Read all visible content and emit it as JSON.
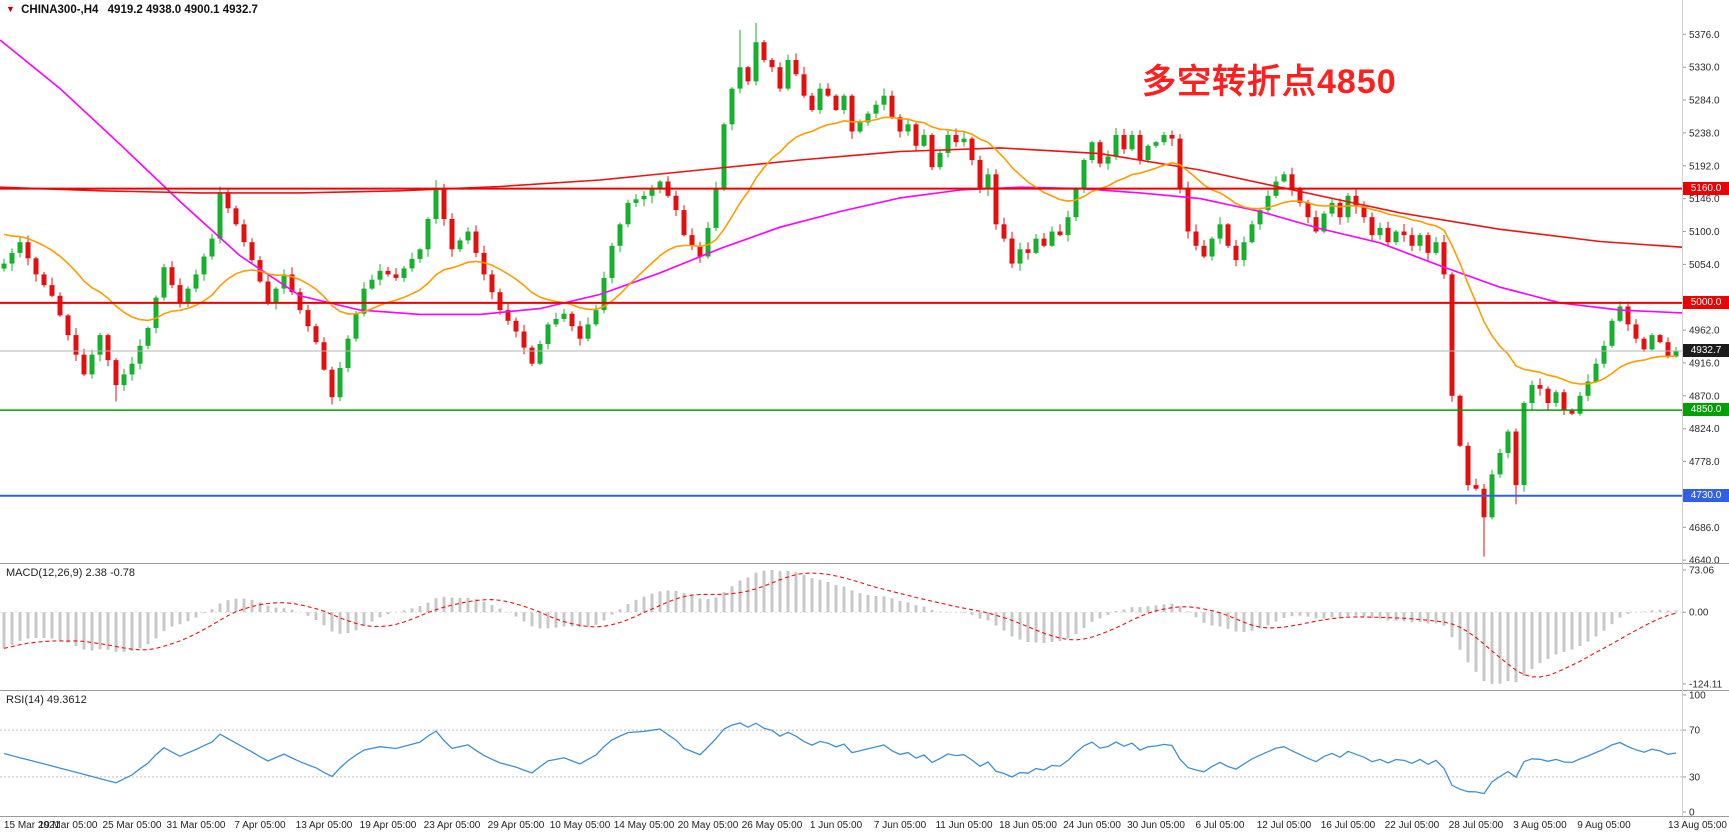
{
  "header": {
    "marker_icon": "▼",
    "symbol": "CHINA300-,H4",
    "ohlc_text": "4919.2 4938.0 4900.1 4932.7"
  },
  "annotation": {
    "text": "多空转折点4850",
    "color": "#ff1f1f"
  },
  "chart_data": {
    "type": "candlestick",
    "symbol": "CHINA300-",
    "timeframe": "H4",
    "ohlc_display": {
      "open": 4919.2,
      "high": 4938.0,
      "low": 4900.1,
      "close": 4932.7
    },
    "x_labels": [
      "15 Mar 2021",
      "19 Mar 05:00",
      "25 Mar 05:00",
      "31 Mar 05:00",
      "7 Apr 05:00",
      "13 Apr 05:00",
      "19 Apr 05:00",
      "23 Apr 05:00",
      "29 Apr 05:00",
      "10 May 05:00",
      "14 May 05:00",
      "20 May 05:00",
      "26 May 05:00",
      "1 Jun 05:00",
      "7 Jun 05:00",
      "11 Jun 05:00",
      "18 Jun 05:00",
      "24 Jun 05:00",
      "30 Jun 05:00",
      "6 Jul 05:00",
      "12 Jul 05:00",
      "16 Jul 05:00",
      "22 Jul 05:00",
      "28 Jul 05:00",
      "3 Aug 05:00",
      "9 Aug 05:00",
      "13 Aug 05:00"
    ],
    "y_axis": {
      "ticks": [
        "5376.0",
        "5330.0",
        "5284.0",
        "5238.0",
        "5192.0",
        "5146.0",
        "5100.0",
        "5054.0",
        "4962.0",
        "4916.0",
        "4870.0",
        "4824.0",
        "4778.0",
        "4686.0",
        "4640.0"
      ],
      "price_max": 5424,
      "price_min": 4636
    },
    "candles_n": 210,
    "candle_up_color": "#15b02c",
    "candle_down_color": "#e60f0f",
    "close_anchors": [
      [
        0,
        5055
      ],
      [
        2,
        5085
      ],
      [
        4,
        5040
      ],
      [
        6,
        5010
      ],
      [
        8,
        4955
      ],
      [
        10,
        4900
      ],
      [
        12,
        4955
      ],
      [
        14,
        4885
      ],
      [
        16,
        4915
      ],
      [
        18,
        4965
      ],
      [
        20,
        5050
      ],
      [
        22,
        5000
      ],
      [
        24,
        5040
      ],
      [
        26,
        5090
      ],
      [
        27,
        5155
      ],
      [
        29,
        5110
      ],
      [
        31,
        5060
      ],
      [
        33,
        5000
      ],
      [
        35,
        5040
      ],
      [
        37,
        4990
      ],
      [
        39,
        4945
      ],
      [
        41,
        4868
      ],
      [
        43,
        4950
      ],
      [
        45,
        5020
      ],
      [
        47,
        5045
      ],
      [
        49,
        5035
      ],
      [
        52,
        5075
      ],
      [
        54,
        5160
      ],
      [
        56,
        5075
      ],
      [
        58,
        5100
      ],
      [
        60,
        5040
      ],
      [
        62,
        4990
      ],
      [
        64,
        4960
      ],
      [
        66,
        4915
      ],
      [
        68,
        4970
      ],
      [
        70,
        4985
      ],
      [
        72,
        4950
      ],
      [
        74,
        4990
      ],
      [
        76,
        5080
      ],
      [
        78,
        5140
      ],
      [
        80,
        5150
      ],
      [
        82,
        5170
      ],
      [
        84,
        5130
      ],
      [
        85,
        5095
      ],
      [
        87,
        5065
      ],
      [
        88,
        5105
      ],
      [
        89,
        5160
      ],
      [
        90,
        5250
      ],
      [
        91,
        5300
      ],
      [
        92,
        5330
      ],
      [
        93,
        5310
      ],
      [
        94,
        5365
      ],
      [
        95,
        5340
      ],
      [
        96,
        5330
      ],
      [
        97,
        5300
      ],
      [
        98,
        5340
      ],
      [
        99,
        5320
      ],
      [
        100,
        5290
      ],
      [
        101,
        5270
      ],
      [
        102,
        5300
      ],
      [
        103,
        5290
      ],
      [
        104,
        5270
      ],
      [
        105,
        5290
      ],
      [
        106,
        5240
      ],
      [
        108,
        5265
      ],
      [
        110,
        5290
      ],
      [
        111,
        5260
      ],
      [
        112,
        5240
      ],
      [
        113,
        5250
      ],
      [
        114,
        5220
      ],
      [
        115,
        5235
      ],
      [
        116,
        5190
      ],
      [
        117,
        5210
      ],
      [
        118,
        5235
      ],
      [
        119,
        5225
      ],
      [
        120,
        5230
      ],
      [
        121,
        5200
      ],
      [
        122,
        5160
      ],
      [
        123,
        5180
      ],
      [
        124,
        5110
      ],
      [
        125,
        5090
      ],
      [
        126,
        5055
      ],
      [
        127,
        5075
      ],
      [
        128,
        5070
      ],
      [
        129,
        5090
      ],
      [
        130,
        5080
      ],
      [
        131,
        5100
      ],
      [
        132,
        5095
      ],
      [
        133,
        5120
      ],
      [
        134,
        5160
      ],
      [
        135,
        5200
      ],
      [
        136,
        5225
      ],
      [
        137,
        5195
      ],
      [
        138,
        5205
      ],
      [
        139,
        5235
      ],
      [
        140,
        5215
      ],
      [
        141,
        5235
      ],
      [
        142,
        5200
      ],
      [
        143,
        5220
      ],
      [
        144,
        5225
      ],
      [
        145,
        5235
      ],
      [
        146,
        5230
      ],
      [
        147,
        5160
      ],
      [
        148,
        5100
      ],
      [
        149,
        5080
      ],
      [
        150,
        5065
      ],
      [
        151,
        5090
      ],
      [
        152,
        5110
      ],
      [
        153,
        5080
      ],
      [
        154,
        5060
      ],
      [
        155,
        5085
      ],
      [
        156,
        5110
      ],
      [
        157,
        5130
      ],
      [
        158,
        5150
      ],
      [
        159,
        5170
      ],
      [
        160,
        5180
      ],
      [
        161,
        5160
      ],
      [
        162,
        5140
      ],
      [
        163,
        5120
      ],
      [
        164,
        5100
      ],
      [
        165,
        5125
      ],
      [
        166,
        5140
      ],
      [
        167,
        5120
      ],
      [
        168,
        5150
      ],
      [
        169,
        5135
      ],
      [
        170,
        5120
      ],
      [
        171,
        5095
      ],
      [
        172,
        5105
      ],
      [
        173,
        5085
      ],
      [
        174,
        5100
      ],
      [
        175,
        5095
      ],
      [
        176,
        5080
      ],
      [
        177,
        5095
      ],
      [
        178,
        5070
      ],
      [
        179,
        5085
      ],
      [
        180,
        5040
      ],
      [
        181,
        4870
      ],
      [
        182,
        4800
      ],
      [
        183,
        4745
      ],
      [
        184,
        4740
      ],
      [
        185,
        4700
      ],
      [
        186,
        4760
      ],
      [
        187,
        4790
      ],
      [
        188,
        4820
      ],
      [
        189,
        4745
      ],
      [
        190,
        4860
      ],
      [
        191,
        4885
      ],
      [
        192,
        4880
      ],
      [
        193,
        4860
      ],
      [
        194,
        4875
      ],
      [
        195,
        4850
      ],
      [
        196,
        4845
      ],
      [
        197,
        4870
      ],
      [
        198,
        4890
      ],
      [
        199,
        4915
      ],
      [
        200,
        4940
      ],
      [
        201,
        4975
      ],
      [
        202,
        4995
      ],
      [
        203,
        4970
      ],
      [
        204,
        4950
      ],
      [
        205,
        4935
      ],
      [
        206,
        4955
      ],
      [
        207,
        4945
      ],
      [
        208,
        4925
      ],
      [
        209,
        4932.7
      ]
    ],
    "wick_overrides": {
      "14": {
        "low": 4862
      },
      "41": {
        "low": 4858
      },
      "54": {
        "high": 5172
      },
      "92": {
        "high": 5382
      },
      "94": {
        "high": 5392
      },
      "185": {
        "low": 4645
      },
      "189": {
        "low": 4718
      }
    },
    "hlines": [
      {
        "price": 5160.0,
        "label": "5160.0",
        "color": "#ee0000",
        "width": 2,
        "badge_bg": "#ee0000"
      },
      {
        "price": 5000.0,
        "label": "5000.0",
        "color": "#ee0000",
        "width": 2,
        "badge_bg": "#ee0000"
      },
      {
        "price": 4850.0,
        "label": "4850.0",
        "color": "#00a000",
        "width": 1.5,
        "badge_bg": "#00a000"
      },
      {
        "price": 4730.0,
        "label": "4730.0",
        "color": "#3060e8",
        "width": 2,
        "badge_bg": "#3060e8"
      }
    ],
    "current_price": {
      "value": 4932.7,
      "label": "4932.7",
      "badge_bg": "#1c1c1c",
      "line_color": "#b5b5b5"
    },
    "ma_lines": [
      {
        "name": "ma-slow-magenta",
        "color": "#ff00ff",
        "anchors": [
          [
            0,
            5368
          ],
          [
            60,
            5300
          ],
          [
            120,
            5222
          ],
          [
            180,
            5142
          ],
          [
            240,
            5066
          ],
          [
            300,
            5010
          ],
          [
            360,
            4990
          ],
          [
            420,
            4984
          ],
          [
            480,
            4984
          ],
          [
            540,
            4992
          ],
          [
            600,
            5012
          ],
          [
            660,
            5042
          ],
          [
            720,
            5076
          ],
          [
            780,
            5106
          ],
          [
            840,
            5128
          ],
          [
            900,
            5147
          ],
          [
            960,
            5158
          ],
          [
            1020,
            5162
          ],
          [
            1080,
            5160
          ],
          [
            1140,
            5154
          ],
          [
            1200,
            5146
          ],
          [
            1260,
            5128
          ],
          [
            1320,
            5104
          ],
          [
            1380,
            5084
          ],
          [
            1440,
            5052
          ],
          [
            1500,
            5022
          ],
          [
            1560,
            5000
          ],
          [
            1620,
            4990
          ],
          [
            1682,
            4986
          ]
        ]
      },
      {
        "name": "ma-long-red",
        "color": "#ee1111",
        "anchors": [
          [
            0,
            5162
          ],
          [
            100,
            5157
          ],
          [
            200,
            5154
          ],
          [
            300,
            5154
          ],
          [
            400,
            5157
          ],
          [
            500,
            5163
          ],
          [
            600,
            5172
          ],
          [
            700,
            5186
          ],
          [
            800,
            5200
          ],
          [
            900,
            5212
          ],
          [
            1000,
            5217
          ],
          [
            1100,
            5209
          ],
          [
            1200,
            5186
          ],
          [
            1300,
            5156
          ],
          [
            1400,
            5126
          ],
          [
            1500,
            5103
          ],
          [
            1600,
            5086
          ],
          [
            1682,
            5078
          ]
        ]
      },
      {
        "name": "ema-fast-orange",
        "color": "#ff9d00",
        "period": 21,
        "seed": 5100
      }
    ],
    "macd": {
      "label": "MACD(12,26,9)",
      "values_text": "2.38 -0.78",
      "fast": 12,
      "slow": 26,
      "signal": 9,
      "axis": [
        "73.06",
        "0.00",
        "-124.11"
      ],
      "axis_max": 73.06,
      "axis_min": -124.11,
      "hist_color": "#c8c8c8",
      "signal_color": "#ef1010"
    },
    "rsi": {
      "label": "RSI(14)",
      "value_text": "49.3612",
      "period": 14,
      "levels": [
        70,
        30
      ],
      "axis": [
        "100",
        "70",
        "30",
        "0"
      ],
      "line_color": "#3f8fd2"
    }
  }
}
